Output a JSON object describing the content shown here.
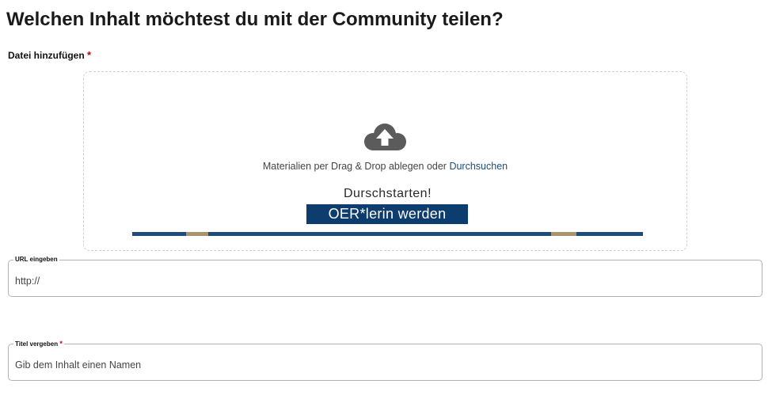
{
  "page": {
    "heading": "Welchen Inhalt möchtest du mit der Community teilen?"
  },
  "upload": {
    "label": "Datei hinzufügen",
    "required_mark": "*",
    "icon": "cloud-upload-icon",
    "instructions": "Materialien per Drag & Drop ablegen oder",
    "browse_link": "Durchsuchen",
    "banner": {
      "headline": "Durschstarten!",
      "button_text": "OER*lerin werden"
    }
  },
  "url_field": {
    "legend": "URL eingeben",
    "placeholder": "http://"
  },
  "title_field": {
    "legend": "Titel vergeben",
    "required_mark": "*",
    "placeholder": "Gib dem Inhalt einen Namen"
  },
  "colors": {
    "link": "#1b4d80",
    "required": "#c00000",
    "banner_blue": "#0d3c6e",
    "banner_stripe": "#1f4b7b",
    "banner_gold": "#a8936a",
    "icon_gray": "#5b5b5b"
  }
}
